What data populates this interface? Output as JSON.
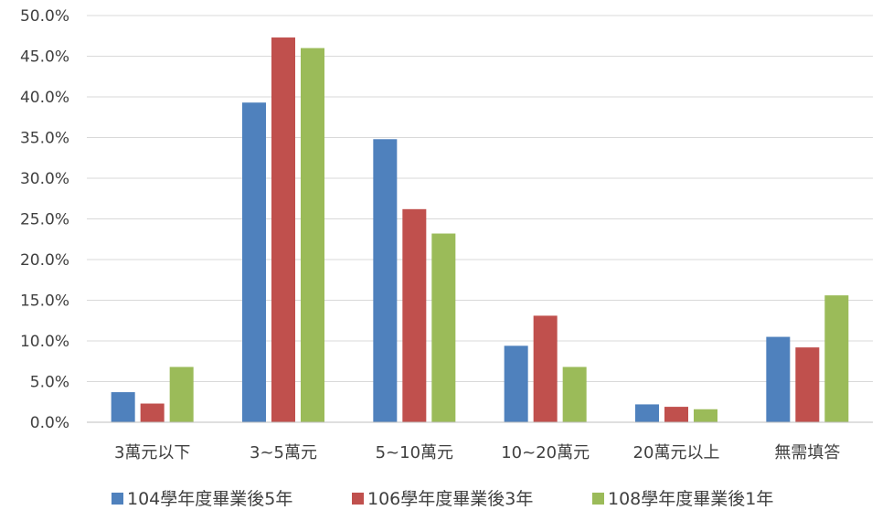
{
  "chart_data": {
    "type": "bar",
    "title": "",
    "xlabel": "",
    "ylabel": "",
    "ylim": [
      0,
      50
    ],
    "y_tick_step": 5,
    "y_tick_format": "percent_1dp",
    "grid": true,
    "legend_position": "bottom",
    "categories": [
      "3萬元以下",
      "3~5萬元",
      "5~10萬元",
      "10~20萬元",
      "20萬元以上",
      "無需填答"
    ],
    "series": [
      {
        "name": "104學年度畢業後5年",
        "color": "#4f81bd",
        "values": [
          3.7,
          39.3,
          34.8,
          9.4,
          2.2,
          10.5
        ]
      },
      {
        "name": "106學年度畢業後3年",
        "color": "#c0504d",
        "values": [
          2.3,
          47.3,
          26.2,
          13.1,
          1.9,
          9.2
        ]
      },
      {
        "name": "108學年度畢業後1年",
        "color": "#9bbb59",
        "values": [
          6.8,
          46.0,
          23.2,
          6.8,
          1.6,
          15.6
        ]
      }
    ]
  }
}
